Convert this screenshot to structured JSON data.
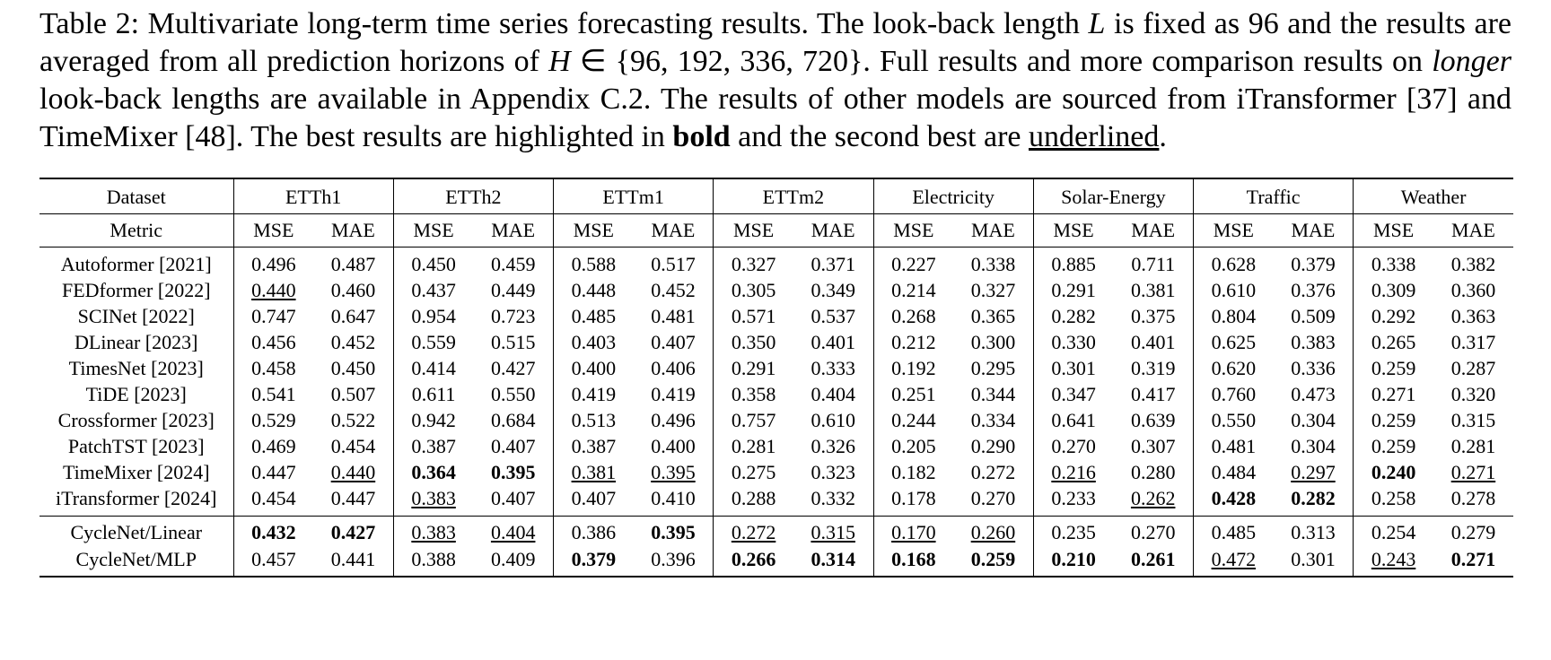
{
  "caption": {
    "segments": [
      {
        "t": "Table 2: Multivariate long-term time series forecasting results. The look-back length ",
        "s": ""
      },
      {
        "t": "L",
        "s": "i"
      },
      {
        "t": " is fixed as 96 and the results are averaged from all prediction horizons of ",
        "s": ""
      },
      {
        "t": "H",
        "s": "i"
      },
      {
        "t": " ∈ {96, 192, 336, 720}. Full results and more comparison results on ",
        "s": ""
      },
      {
        "t": "longer",
        "s": "i"
      },
      {
        "t": " look-back lengths are available in Appendix C.2. The results of other models are sourced from iTransformer [37] and TimeMixer [48]. The best results are highlighted in ",
        "s": ""
      },
      {
        "t": "bold",
        "s": "b"
      },
      {
        "t": " and the second best are ",
        "s": ""
      },
      {
        "t": "underlined",
        "s": "u"
      },
      {
        "t": ".",
        "s": ""
      }
    ]
  },
  "table": {
    "dataset_header_label": "Dataset",
    "metric_header_label": "Metric",
    "groups": [
      "ETTh1",
      "ETTh2",
      "ETTm1",
      "ETTm2",
      "Electricity",
      "Solar-Energy",
      "Traffic",
      "Weather"
    ],
    "metrics": [
      "MSE",
      "MAE"
    ],
    "value_style_legend": {
      "*": "best-bold",
      "_": "second-best-underlined"
    },
    "rows": [
      {
        "model": "Autoformer [2021]",
        "values": [
          "0.496",
          "0.487",
          "0.450",
          "0.459",
          "0.588",
          "0.517",
          "0.327",
          "0.371",
          "0.227",
          "0.338",
          "0.885",
          "0.711",
          "0.628",
          "0.379",
          "0.338",
          "0.382"
        ]
      },
      {
        "model": "FEDformer [2022]",
        "values": [
          "_0.440",
          "0.460",
          "0.437",
          "0.449",
          "0.448",
          "0.452",
          "0.305",
          "0.349",
          "0.214",
          "0.327",
          "0.291",
          "0.381",
          "0.610",
          "0.376",
          "0.309",
          "0.360"
        ]
      },
      {
        "model": "SCINet [2022]",
        "values": [
          "0.747",
          "0.647",
          "0.954",
          "0.723",
          "0.485",
          "0.481",
          "0.571",
          "0.537",
          "0.268",
          "0.365",
          "0.282",
          "0.375",
          "0.804",
          "0.509",
          "0.292",
          "0.363"
        ]
      },
      {
        "model": "DLinear [2023]",
        "values": [
          "0.456",
          "0.452",
          "0.559",
          "0.515",
          "0.403",
          "0.407",
          "0.350",
          "0.401",
          "0.212",
          "0.300",
          "0.330",
          "0.401",
          "0.625",
          "0.383",
          "0.265",
          "0.317"
        ]
      },
      {
        "model": "TimesNet [2023]",
        "values": [
          "0.458",
          "0.450",
          "0.414",
          "0.427",
          "0.400",
          "0.406",
          "0.291",
          "0.333",
          "0.192",
          "0.295",
          "0.301",
          "0.319",
          "0.620",
          "0.336",
          "0.259",
          "0.287"
        ]
      },
      {
        "model": "TiDE [2023]",
        "values": [
          "0.541",
          "0.507",
          "0.611",
          "0.550",
          "0.419",
          "0.419",
          "0.358",
          "0.404",
          "0.251",
          "0.344",
          "0.347",
          "0.417",
          "0.760",
          "0.473",
          "0.271",
          "0.320"
        ]
      },
      {
        "model": "Crossformer [2023]",
        "values": [
          "0.529",
          "0.522",
          "0.942",
          "0.684",
          "0.513",
          "0.496",
          "0.757",
          "0.610",
          "0.244",
          "0.334",
          "0.641",
          "0.639",
          "0.550",
          "0.304",
          "0.259",
          "0.315"
        ]
      },
      {
        "model": "PatchTST [2023]",
        "values": [
          "0.469",
          "0.454",
          "0.387",
          "0.407",
          "0.387",
          "0.400",
          "0.281",
          "0.326",
          "0.205",
          "0.290",
          "0.270",
          "0.307",
          "0.481",
          "0.304",
          "0.259",
          "0.281"
        ]
      },
      {
        "model": "TimeMixer [2024]",
        "values": [
          "0.447",
          "_0.440",
          "*0.364",
          "*0.395",
          "_0.381",
          "_0.395",
          "0.275",
          "0.323",
          "0.182",
          "0.272",
          "_0.216",
          "0.280",
          "0.484",
          "_0.297",
          "*0.240",
          "_0.271"
        ]
      },
      {
        "model": "iTransformer [2024]",
        "values": [
          "0.454",
          "0.447",
          "_0.383",
          "0.407",
          "0.407",
          "0.410",
          "0.288",
          "0.332",
          "0.178",
          "0.270",
          "0.233",
          "_0.262",
          "*0.428",
          "*0.282",
          "0.258",
          "0.278"
        ]
      }
    ],
    "footer_rows": [
      {
        "model": "CycleNet/Linear",
        "values": [
          "*0.432",
          "*0.427",
          "_0.383",
          "_0.404",
          "0.386",
          "*0.395",
          "_0.272",
          "_0.315",
          "_0.170",
          "_0.260",
          "0.235",
          "0.270",
          "0.485",
          "0.313",
          "0.254",
          "0.279"
        ]
      },
      {
        "model": "CycleNet/MLP",
        "values": [
          "0.457",
          "0.441",
          "0.388",
          "0.409",
          "*0.379",
          "0.396",
          "*0.266",
          "*0.314",
          "*0.168",
          "*0.259",
          "*0.210",
          "*0.261",
          "_0.472",
          "0.301",
          "_0.243",
          "*0.271"
        ]
      }
    ]
  }
}
